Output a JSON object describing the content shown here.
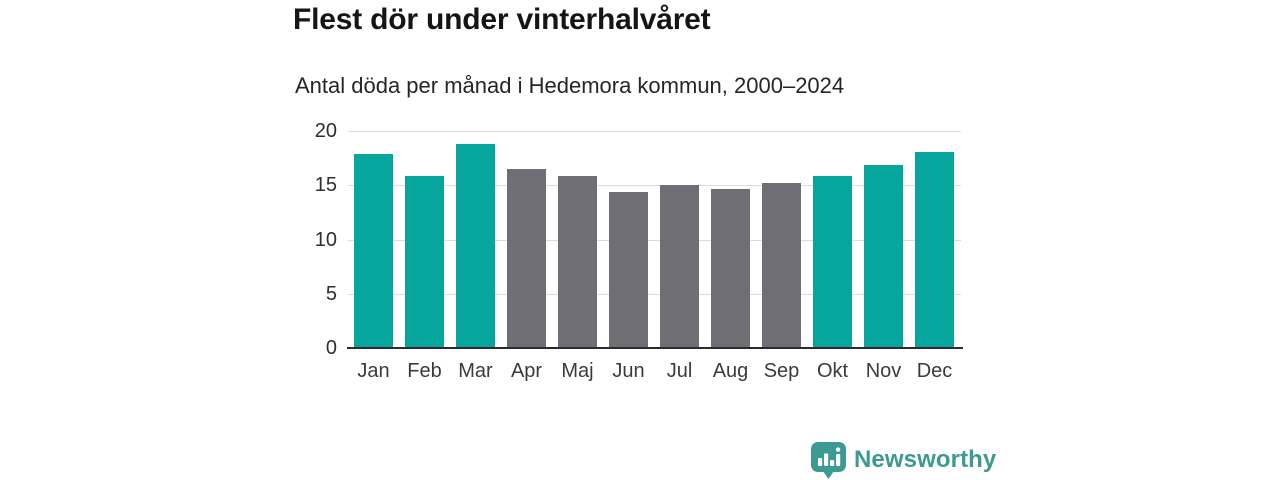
{
  "header": {
    "title": "Flest dör under vinterhalvåret",
    "subtitle": "Antal döda per månad i Hedemora kommun, 2000–2024"
  },
  "chart_data": {
    "type": "bar",
    "title": "Flest dör under vinterhalvåret",
    "subtitle": "Antal döda per månad i Hedemora kommun, 2000–2024",
    "categories": [
      "Jan",
      "Feb",
      "Mar",
      "Apr",
      "Maj",
      "Jun",
      "Jul",
      "Aug",
      "Sep",
      "Okt",
      "Nov",
      "Dec"
    ],
    "values": [
      17.9,
      15.9,
      18.8,
      16.5,
      15.9,
      14.4,
      15.0,
      14.7,
      15.2,
      15.9,
      16.9,
      18.1
    ],
    "bar_colors": [
      "teal",
      "teal",
      "teal",
      "gray",
      "gray",
      "gray",
      "gray",
      "gray",
      "gray",
      "teal",
      "teal",
      "teal"
    ],
    "y_ticks": [
      0,
      5,
      10,
      15,
      20
    ],
    "ylim": [
      0,
      20
    ],
    "xlabel": "",
    "ylabel": "",
    "grid": "horizontal",
    "legend": "none"
  },
  "colors": {
    "teal": "#06a69d",
    "gray": "#6f6e74",
    "gridline": "#dcdcdc",
    "axis": "#2b2a30",
    "logo": "#3c9a92"
  },
  "branding": {
    "logo_text": "Newsworthy",
    "logo_icon": "bar-chart-speech-bubble-icon"
  }
}
